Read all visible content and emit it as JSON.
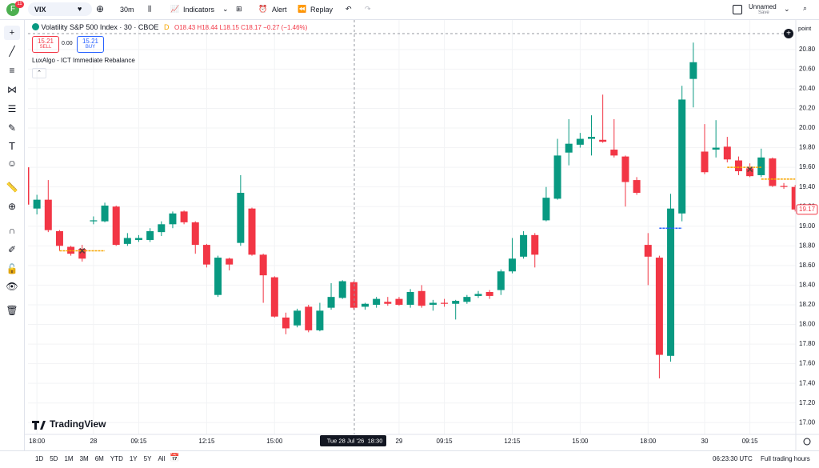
{
  "header": {
    "avatar": "F",
    "badge": "11",
    "symbol": "VIX",
    "interval": "30m",
    "indicators": "Indicators",
    "alert": "Alert",
    "replay": "Replay",
    "layout_name": "Unnamed",
    "save": "Save"
  },
  "legend": {
    "title": "Volatility S&P 500 Index · 30 · CBOE",
    "flag": "D",
    "ohlc": "O18.43 H18.44 L18.15 C18.17 −0.27 (−1.46%)",
    "sell_price": "15.21",
    "sell": "SELL",
    "spread": "0.00",
    "buy_price": "15.21",
    "buy": "BUY",
    "indicator": "LuxAlgo - ICT Immediate Rebalance"
  },
  "price_axis_unit": "point",
  "crosshair": {
    "date": "Tue 28 Jul '26",
    "time": "18:30"
  },
  "logo": "TradingView",
  "footer": {
    "ranges": [
      "1D",
      "5D",
      "1M",
      "3M",
      "6M",
      "YTD",
      "1Y",
      "5Y",
      "All"
    ],
    "clock": "06:23:30 UTC",
    "session": "Full trading hours"
  },
  "chart_data": {
    "type": "candlestick",
    "up_color": "#089981",
    "down_color": "#f23645",
    "open": [
      19.6,
      19.18,
      19.27,
      18.95,
      18.79,
      18.77,
      19.05,
      19.05,
      19.2,
      18.82,
      18.86,
      18.86,
      18.94,
      19.02,
      19.15,
      19.04,
      18.81,
      18.3,
      18.67,
      18.83,
      19.18,
      18.71,
      18.48,
      18.07,
      17.99,
      18.18,
      17.94,
      18.17,
      18.27,
      18.43,
      18.18,
      18.2,
      18.23,
      18.26,
      18.2,
      18.34,
      18.2,
      18.22,
      18.21,
      18.23,
      18.29,
      18.33,
      18.35,
      18.54,
      18.69,
      18.91,
      19.06,
      19.28,
      19.75,
      19.83,
      19.89,
      19.88,
      19.78,
      19.71,
      19.47,
      18.81,
      18.68,
      17.68,
      19.13,
      20.5,
      19.76,
      19.78,
      19.81,
      19.67,
      19.59,
      19.52,
      19.69,
      19.41,
      19.4
    ],
    "high": [
      19.62,
      19.32,
      19.47,
      18.96,
      18.8,
      18.81,
      19.1,
      19.24,
      19.21,
      18.93,
      18.91,
      18.98,
      19.05,
      19.15,
      19.16,
      19.05,
      18.82,
      18.7,
      18.68,
      19.52,
      19.19,
      18.72,
      18.49,
      18.12,
      18.16,
      18.2,
      18.22,
      18.42,
      18.45,
      18.44,
      18.22,
      18.28,
      18.28,
      18.28,
      18.36,
      18.4,
      18.25,
      18.26,
      18.25,
      18.3,
      18.34,
      18.35,
      18.56,
      18.88,
      18.95,
      18.93,
      19.4,
      19.89,
      20.09,
      19.95,
      20.13,
      20.34,
      20.09,
      19.72,
      19.5,
      18.93,
      18.7,
      19.33,
      20.43,
      20.87,
      20.04,
      20.08,
      19.91,
      19.71,
      19.64,
      19.79,
      19.7,
      19.44,
      19.42
    ],
    "low": [
      19.2,
      19.12,
      18.94,
      18.75,
      18.7,
      18.64,
      19.02,
      19.04,
      18.8,
      18.8,
      18.84,
      18.84,
      18.9,
      18.98,
      19.02,
      18.72,
      18.58,
      18.28,
      18.55,
      18.8,
      18.7,
      18.22,
      18.07,
      17.9,
      17.97,
      17.92,
      17.93,
      18.15,
      18.26,
      18.15,
      18.15,
      18.17,
      18.19,
      18.19,
      18.17,
      18.17,
      18.14,
      18.18,
      18.05,
      18.21,
      18.27,
      18.26,
      18.3,
      18.52,
      18.67,
      18.58,
      19.05,
      19.27,
      19.62,
      19.8,
      19.72,
      19.85,
      19.7,
      19.2,
      19.32,
      18.4,
      17.45,
      17.62,
      19.05,
      20.21,
      19.53,
      19.7,
      19.65,
      19.52,
      19.5,
      19.5,
      19.4,
      19.38,
      19.15
    ],
    "close": [
      19.22,
      19.27,
      18.96,
      18.8,
      18.72,
      18.67,
      19.06,
      19.21,
      18.81,
      18.88,
      18.88,
      18.95,
      19.02,
      19.13,
      19.04,
      18.81,
      18.61,
      18.68,
      18.61,
      19.34,
      18.71,
      18.5,
      18.08,
      17.96,
      18.14,
      17.94,
      18.14,
      18.28,
      18.44,
      18.17,
      18.21,
      18.26,
      18.21,
      18.2,
      18.33,
      18.19,
      18.22,
      18.21,
      18.24,
      18.28,
      18.31,
      18.29,
      18.54,
      18.67,
      18.91,
      18.71,
      19.29,
      19.72,
      19.84,
      19.89,
      19.91,
      19.86,
      19.72,
      19.45,
      19.34,
      18.69,
      17.69,
      19.18,
      20.29,
      20.67,
      19.55,
      19.8,
      19.68,
      19.56,
      19.51,
      19.7,
      19.41,
      19.4,
      19.17
    ],
    "levels": [
      {
        "from": 3,
        "to": 7,
        "value": 18.75,
        "color": "#f7a600"
      },
      {
        "from": 56,
        "to": 58,
        "value": 18.98,
        "color": "#2962ff"
      },
      {
        "from": 62,
        "to": 65,
        "value": 19.6,
        "color": "#f7a600"
      },
      {
        "from": 65,
        "to": 68,
        "value": 19.48,
        "color": "#f7a600"
      }
    ],
    "markers": [
      {
        "index": 5,
        "value": 18.75
      },
      {
        "index": 64,
        "value": 19.58
      }
    ],
    "ylim": [
      16.88,
      21.1
    ],
    "yticks": [
      {
        "value": 17,
        "label": "17.00"
      },
      {
        "value": 17.2,
        "label": "17.20"
      },
      {
        "value": 17.4,
        "label": "17.40"
      },
      {
        "value": 17.6,
        "label": "17.60"
      },
      {
        "value": 17.8,
        "label": "17.80"
      },
      {
        "value": 18,
        "label": "18.00"
      },
      {
        "value": 18.2,
        "label": "18.20"
      },
      {
        "value": 18.4,
        "label": "18.40"
      },
      {
        "value": 18.6,
        "label": "18.60"
      },
      {
        "value": 18.8,
        "label": "18.80"
      },
      {
        "value": 19,
        "label": "19.00"
      },
      {
        "value": 19.2,
        "label": "19.20"
      },
      {
        "value": 19.4,
        "label": "19.40"
      },
      {
        "value": 19.6,
        "label": "19.60"
      },
      {
        "value": 19.8,
        "label": "19.80"
      },
      {
        "value": 20,
        "label": "20.00"
      },
      {
        "value": 20.2,
        "label": "20.20"
      },
      {
        "value": 20.4,
        "label": "20.40"
      },
      {
        "value": 20.6,
        "label": "20.60"
      },
      {
        "value": 20.8,
        "label": "20.80"
      }
    ],
    "xticks": [
      {
        "value": 1,
        "label": "18:00"
      },
      {
        "value": 6,
        "label": "28"
      },
      {
        "value": 10,
        "label": "09:15"
      },
      {
        "value": 16,
        "label": "12:15"
      },
      {
        "value": 22,
        "label": "15:00"
      },
      {
        "value": 33,
        "label": "29"
      },
      {
        "value": 37,
        "label": "09:15"
      },
      {
        "value": 43,
        "label": "12:15"
      },
      {
        "value": 49,
        "label": "15:00"
      },
      {
        "value": 55,
        "label": "18:00"
      },
      {
        "value": 60,
        "label": "30"
      },
      {
        "value": 64,
        "label": "09:15"
      }
    ]
  }
}
